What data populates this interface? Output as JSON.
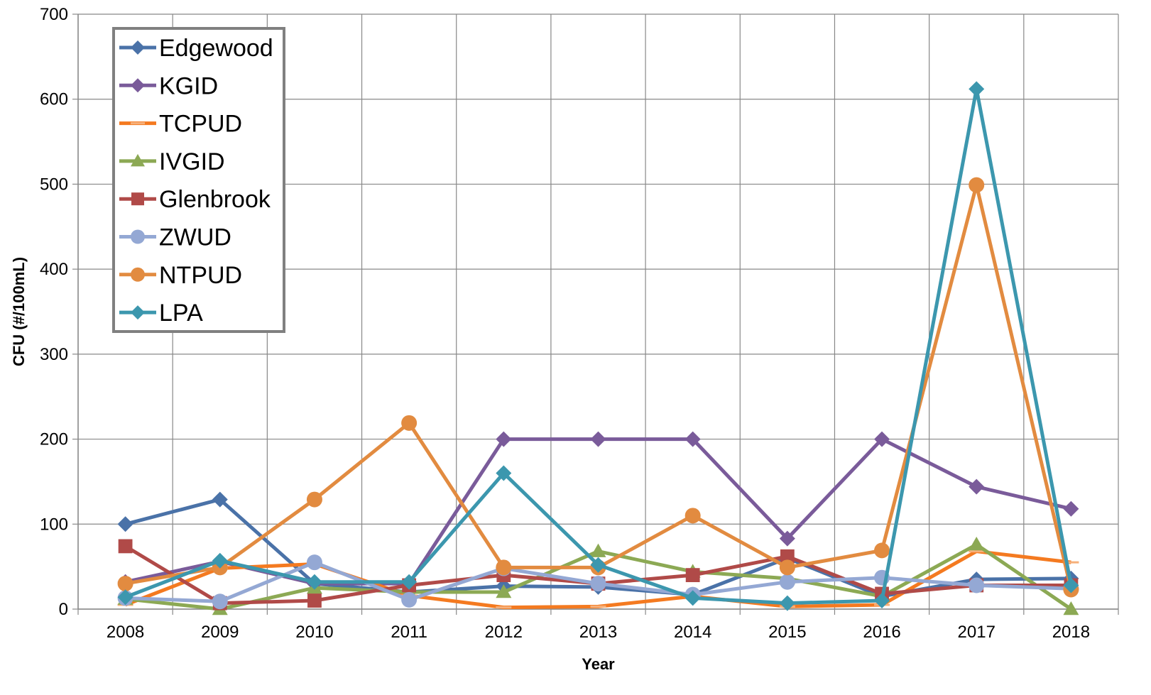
{
  "chart_data": {
    "type": "line",
    "title": "",
    "xlabel": "Year",
    "ylabel": "CFU (#/100mL)",
    "ylim": [
      0,
      700
    ],
    "yticks": [
      0,
      100,
      200,
      300,
      400,
      500,
      600,
      700
    ],
    "grid": true,
    "legend_position": "top-left",
    "x": [
      "2008",
      "2009",
      "2010",
      "2011",
      "2012",
      "2013",
      "2014",
      "2015",
      "2016",
      "2017",
      "2018"
    ],
    "series": [
      {
        "name": "Edgewood",
        "color": "#4A72A8",
        "marker": "diamond",
        "values": [
          100,
          129,
          30,
          20,
          27,
          26,
          17,
          60,
          15,
          35,
          36
        ]
      },
      {
        "name": "KGID",
        "color": "#7A5B9A",
        "marker": "diamond",
        "values": [
          32,
          56,
          30,
          30,
          200,
          200,
          200,
          83,
          200,
          144,
          118
        ]
      },
      {
        "name": "TCPUD",
        "color": "#F47A20",
        "marker": "dash",
        "values": [
          5,
          48,
          53,
          16,
          2,
          3,
          15,
          3,
          5,
          68,
          55
        ]
      },
      {
        "name": "IVGID",
        "color": "#8CA954",
        "marker": "triangle",
        "values": [
          12,
          0,
          25,
          20,
          20,
          68,
          44,
          36,
          15,
          76,
          0
        ]
      },
      {
        "name": "Glenbrook",
        "color": "#B04A48",
        "marker": "square",
        "values": [
          74,
          7,
          10,
          28,
          40,
          30,
          40,
          62,
          18,
          28,
          28
        ]
      },
      {
        "name": "ZWUD",
        "color": "#94A8D4",
        "marker": "circle",
        "values": [
          13,
          9,
          55,
          11,
          48,
          30,
          17,
          32,
          37,
          28,
          24
        ]
      },
      {
        "name": "NTPUD",
        "color": "#E28B40",
        "marker": "circle",
        "values": [
          30,
          49,
          129,
          219,
          49,
          49,
          110,
          49,
          69,
          499,
          23
        ]
      },
      {
        "name": "LPA",
        "color": "#3C97AE",
        "marker": "diamond",
        "values": [
          14,
          57,
          32,
          32,
          160,
          52,
          13,
          7,
          10,
          612,
          28
        ]
      }
    ]
  }
}
